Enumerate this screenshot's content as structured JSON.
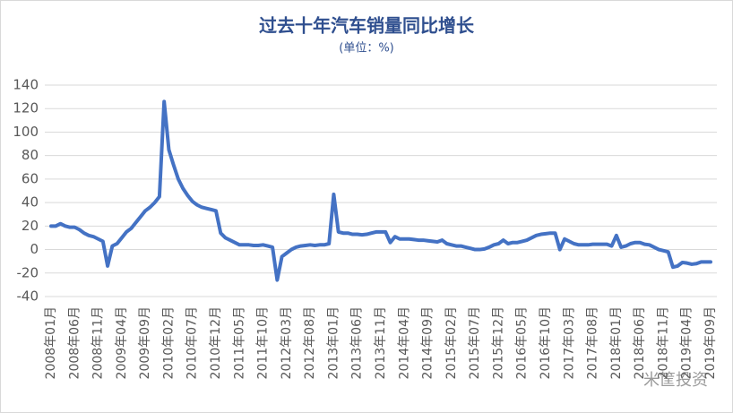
{
  "chart_data": {
    "type": "line",
    "title": "过去十年汽车销量同比增长",
    "subtitle": "(单位：%)",
    "watermark": "米筐投资",
    "categories": [
      "2008年01月",
      null,
      null,
      null,
      null,
      "2008年06月",
      null,
      null,
      null,
      null,
      "2008年11月",
      null,
      null,
      null,
      null,
      "2009年04月",
      null,
      null,
      null,
      null,
      "2009年09月",
      null,
      null,
      null,
      null,
      "2010年02月",
      null,
      null,
      null,
      null,
      "2010年07月",
      null,
      null,
      null,
      null,
      "2010年12月",
      null,
      null,
      null,
      null,
      "2011年05月",
      null,
      null,
      null,
      null,
      "2011年10月",
      null,
      null,
      null,
      null,
      "2012年03月",
      null,
      null,
      null,
      null,
      "2012年08月",
      null,
      null,
      null,
      null,
      "2013年01月",
      null,
      null,
      null,
      null,
      "2013年06月",
      null,
      null,
      null,
      null,
      "2013年11月",
      null,
      null,
      null,
      null,
      "2014年04月",
      null,
      null,
      null,
      null,
      "2014年09月",
      null,
      null,
      null,
      null,
      "2015年02月",
      null,
      null,
      null,
      null,
      "2015年07月",
      null,
      null,
      null,
      null,
      "2015年12月",
      null,
      null,
      null,
      null,
      "2016年05月",
      null,
      null,
      null,
      null,
      "2016年10月",
      null,
      null,
      null,
      null,
      "2017年03月",
      null,
      null,
      null,
      null,
      "2017年08月",
      null,
      null,
      null,
      null,
      "2018年01月",
      null,
      null,
      null,
      null,
      "2018年06月",
      null,
      null,
      null,
      null,
      "2018年11月",
      null,
      null,
      null,
      null,
      "2019年04月",
      null,
      null,
      null,
      null,
      "2019年09月"
    ],
    "values": [
      20,
      20,
      22,
      20,
      19,
      19,
      17,
      14,
      12,
      11,
      9,
      7,
      -14,
      3,
      5,
      10,
      15,
      18,
      23,
      28,
      33,
      36,
      40,
      45,
      126,
      85,
      72,
      60,
      52,
      46,
      41,
      38,
      36,
      35,
      34,
      33,
      14,
      10,
      8,
      6,
      4,
      4,
      4,
      3.5,
      3.5,
      4,
      3,
      2,
      -26,
      -6,
      -3,
      0,
      2,
      3,
      3.5,
      4,
      3.5,
      4,
      4,
      5,
      47,
      15,
      14,
      14,
      13,
      13,
      12.5,
      13,
      14,
      15,
      15,
      15,
      6,
      11,
      9,
      9,
      9,
      8.5,
      8,
      8,
      7.5,
      7,
      6.5,
      8,
      5,
      4,
      3,
      3,
      2,
      1,
      0,
      0,
      0.5,
      2,
      4,
      5,
      8,
      5,
      6,
      6,
      7,
      8,
      10,
      12,
      13,
      13.5,
      14,
      14,
      0,
      9,
      7,
      5,
      4,
      4,
      4,
      4.5,
      4.5,
      4.5,
      4.5,
      3,
      12,
      2,
      3,
      5,
      6,
      6,
      4.5,
      4,
      2,
      0,
      -1,
      -2,
      -15,
      -14,
      -11,
      -11.5,
      -12.5,
      -12,
      -10.5,
      -10.5,
      -10.5
    ],
    "color": "#4472c4",
    "ylim": [
      -40,
      140
    ],
    "yticks": [
      -40,
      -20,
      0,
      20,
      40,
      60,
      80,
      100,
      120,
      140
    ],
    "grid": true
  }
}
